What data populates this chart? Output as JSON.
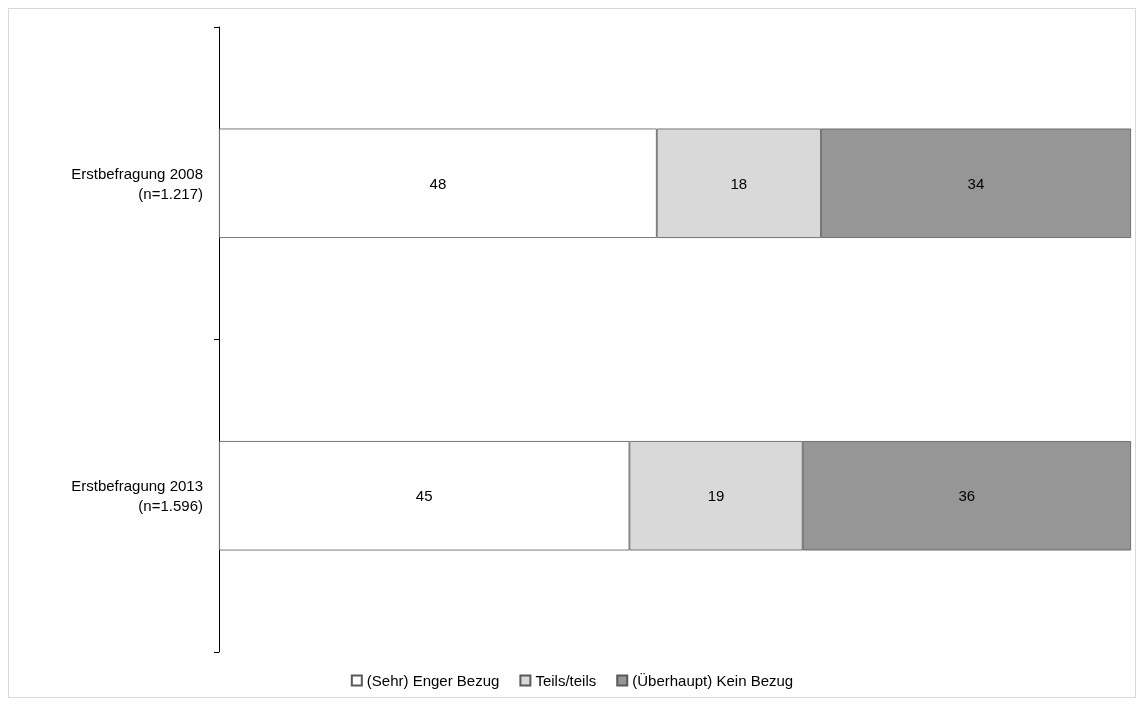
{
  "chart_data": {
    "type": "bar",
    "orientation": "horizontal",
    "stacked": true,
    "data_labels": true,
    "legend": "bottom",
    "grid": false,
    "tick_labels": "y",
    "xlim": [
      0,
      100
    ],
    "categories": [
      "Erstbefragung 2008\n(n=1.217)",
      "Erstbefragung 2013\n(n=1.596)"
    ],
    "series": [
      {
        "name": "(Sehr) Enger Bezug",
        "color": "#ffffff",
        "values": [
          48,
          45
        ]
      },
      {
        "name": "Teils/teils",
        "color": "#d9d9d9",
        "values": [
          18,
          19
        ]
      },
      {
        "name": "(Überhaupt) Kein Bezug",
        "color": "#969696",
        "values": [
          34,
          36
        ]
      }
    ]
  }
}
